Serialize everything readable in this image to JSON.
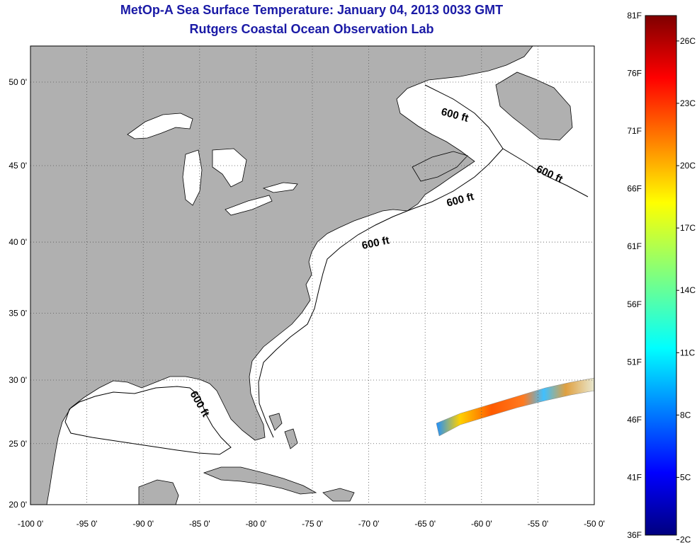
{
  "header": {
    "title": "MetOp-A Sea Surface Temperature:  January 04, 2013 0033 GMT",
    "subtitle": "Rutgers Coastal Ocean Observation Lab"
  },
  "map": {
    "lon_range": [
      -100,
      -50
    ],
    "lat_range": [
      20,
      52.5
    ],
    "lon_ticks": [
      "-100 0'",
      "-95 0'",
      "-90 0'",
      "-85 0'",
      "-80 0'",
      "-75 0'",
      "-70 0'",
      "-65 0'",
      "-60 0'",
      "-55 0'",
      "-50 0'"
    ],
    "lat_ticks": [
      "20 0'",
      "25 0'",
      "30 0'",
      "35 0'",
      "40 0'",
      "45 0'",
      "50 0'"
    ],
    "contour_labels": [
      "600 ft",
      "600 ft",
      "600 ft",
      "600 ft",
      "600 ft"
    ],
    "colors": {
      "land": "#b0b0b0",
      "ocean": "#ffffff",
      "grid": "#666666",
      "title": "#1a1aa6"
    }
  },
  "colorbar": {
    "fahrenheit_labels": [
      "81F",
      "76F",
      "71F",
      "66F",
      "61F",
      "56F",
      "51F",
      "46F",
      "41F",
      "36F"
    ],
    "celsius_labels": [
      "26C",
      "23C",
      "20C",
      "17C",
      "14C",
      "11C",
      "8C",
      "5C",
      "2C"
    ]
  }
}
